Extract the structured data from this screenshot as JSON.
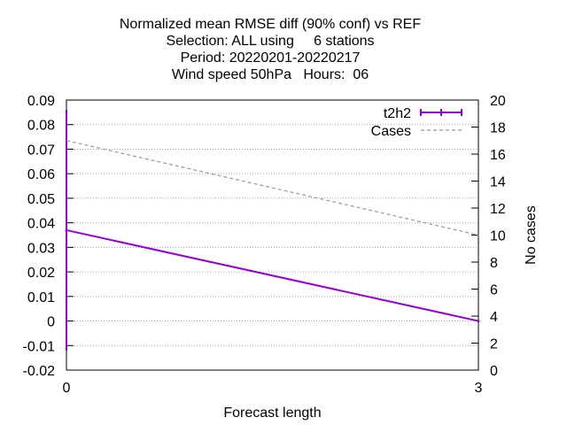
{
  "chart_data": {
    "type": "line",
    "title_lines": [
      "Normalized mean RMSE diff (90% conf) vs REF",
      "Selection: ALL using     6 stations",
      "Period: 20220201-20220217",
      "Wind speed 50hPa   Hours:  06"
    ],
    "xlabel": "Forecast length",
    "ylabel": "",
    "y2label": "No cases",
    "xlim": [
      0,
      3
    ],
    "ylim": [
      -0.02,
      0.09
    ],
    "y2lim": [
      0,
      20
    ],
    "x_ticks": [
      "0",
      "3"
    ],
    "y_ticks": [
      "-0.02",
      "-0.01",
      "0",
      "0.01",
      "0.02",
      "0.03",
      "0.04",
      "0.05",
      "0.06",
      "0.07",
      "0.08",
      "0.09"
    ],
    "y2_ticks": [
      "0",
      "2",
      "4",
      "6",
      "8",
      "10",
      "12",
      "14",
      "16",
      "18",
      "20"
    ],
    "grid": true,
    "legend_position": "top-right",
    "series": [
      {
        "name": "t2h2",
        "axis": "y",
        "color": "#9400d3",
        "style": "solid",
        "x": [
          0,
          3
        ],
        "y": [
          0.037,
          0.0
        ],
        "error_low": [
          -0.012,
          null
        ],
        "error_high": [
          0.086,
          null
        ]
      },
      {
        "name": "Cases",
        "axis": "y2",
        "color": "#999999",
        "style": "dashed",
        "x": [
          0,
          3
        ],
        "y": [
          17,
          10
        ]
      }
    ]
  }
}
